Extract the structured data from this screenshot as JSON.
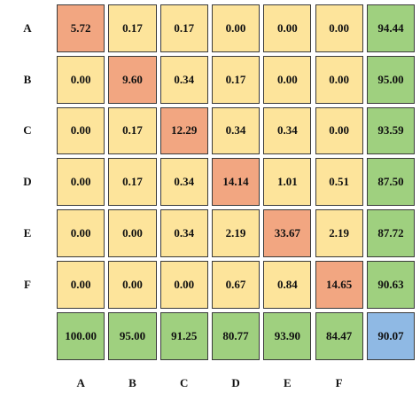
{
  "table": {
    "row_labels": [
      "A",
      "B",
      "C",
      "D",
      "E",
      "F"
    ],
    "col_labels": [
      "A",
      "B",
      "C",
      "D",
      "E",
      "F"
    ],
    "rows": [
      [
        "5.72",
        "0.17",
        "0.17",
        "0.00",
        "0.00",
        "0.00",
        "94.44"
      ],
      [
        "0.00",
        "9.60",
        "0.34",
        "0.17",
        "0.00",
        "0.00",
        "95.00"
      ],
      [
        "0.00",
        "0.17",
        "12.29",
        "0.34",
        "0.34",
        "0.00",
        "93.59"
      ],
      [
        "0.00",
        "0.17",
        "0.34",
        "14.14",
        "1.01",
        "0.51",
        "87.50"
      ],
      [
        "0.00",
        "0.00",
        "0.34",
        "2.19",
        "33.67",
        "2.19",
        "87.72"
      ],
      [
        "0.00",
        "0.00",
        "0.00",
        "0.67",
        "0.84",
        "14.65",
        "90.63"
      ],
      [
        "100.00",
        "95.00",
        "91.25",
        "80.77",
        "93.90",
        "84.47",
        "90.07"
      ]
    ]
  }
}
